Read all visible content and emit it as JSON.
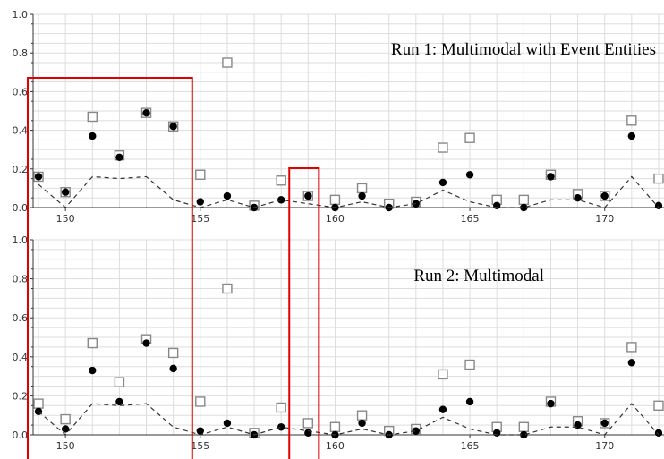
{
  "chart_data": [
    {
      "type": "scatter",
      "title": "Run 1: Multimodal with Event Entities",
      "xlabel": "",
      "ylabel": "",
      "xlim": [
        148.8,
        172.2
      ],
      "ylim": [
        0.0,
        1.0
      ],
      "xticks": [
        "150",
        "155",
        "160",
        "165",
        "170"
      ],
      "yticks": [
        "0.0",
        "0.2",
        "0.4",
        "0.6",
        "0.8",
        "1.0"
      ],
      "grid": true,
      "x": [
        149,
        150,
        151,
        152,
        153,
        154,
        155,
        156,
        157,
        158,
        159,
        160,
        161,
        162,
        163,
        164,
        165,
        166,
        167,
        168,
        169,
        170,
        171,
        172
      ],
      "series": [
        {
          "marker": "open-square",
          "values": [
            0.16,
            0.08,
            0.47,
            0.27,
            0.49,
            0.42,
            0.17,
            0.75,
            0.01,
            0.14,
            0.06,
            0.04,
            0.1,
            0.02,
            0.03,
            0.31,
            0.36,
            0.04,
            0.04,
            0.17,
            0.07,
            0.06,
            0.45,
            0.15
          ]
        },
        {
          "marker": "filled-circle",
          "values": [
            0.16,
            0.08,
            0.37,
            0.26,
            0.49,
            0.42,
            0.03,
            0.06,
            0.0,
            0.04,
            0.06,
            0.0,
            0.06,
            0.0,
            0.02,
            0.13,
            0.17,
            0.01,
            0.0,
            0.16,
            0.05,
            0.06,
            0.37,
            0.01
          ]
        },
        {
          "marker": "dashed-line",
          "values": [
            0.12,
            0.0,
            0.16,
            0.15,
            0.16,
            0.04,
            0.0,
            0.04,
            0.0,
            0.04,
            0.02,
            0.0,
            0.03,
            0.0,
            0.02,
            0.09,
            0.03,
            0.0,
            0.0,
            0.04,
            0.04,
            0.0,
            0.16,
            0.0
          ]
        }
      ]
    },
    {
      "type": "scatter",
      "title": "Run 2: Multimodal",
      "xlabel": "",
      "ylabel": "",
      "xlim": [
        148.8,
        172.2
      ],
      "ylim": [
        0.0,
        1.0
      ],
      "xticks": [
        "150",
        "155",
        "160",
        "165",
        "170"
      ],
      "yticks": [
        "0.0",
        "0.2",
        "0.4",
        "0.6",
        "0.8",
        "1.0"
      ],
      "grid": true,
      "x": [
        149,
        150,
        151,
        152,
        153,
        154,
        155,
        156,
        157,
        158,
        159,
        160,
        161,
        162,
        163,
        164,
        165,
        166,
        167,
        168,
        169,
        170,
        171,
        172
      ],
      "series": [
        {
          "marker": "open-square",
          "values": [
            0.16,
            0.08,
            0.47,
            0.27,
            0.49,
            0.42,
            0.17,
            0.75,
            0.01,
            0.14,
            0.06,
            0.04,
            0.1,
            0.02,
            0.03,
            0.31,
            0.36,
            0.04,
            0.04,
            0.17,
            0.07,
            0.06,
            0.45,
            0.15
          ]
        },
        {
          "marker": "filled-circle",
          "values": [
            0.12,
            0.03,
            0.33,
            0.17,
            0.47,
            0.34,
            0.02,
            0.06,
            0.0,
            0.04,
            0.01,
            0.0,
            0.06,
            0.0,
            0.02,
            0.13,
            0.17,
            0.01,
            0.0,
            0.16,
            0.05,
            0.06,
            0.37,
            0.01
          ]
        },
        {
          "marker": "dashed-line",
          "values": [
            0.12,
            0.0,
            0.16,
            0.15,
            0.16,
            0.04,
            0.0,
            0.04,
            0.0,
            0.04,
            0.02,
            0.0,
            0.03,
            0.0,
            0.02,
            0.09,
            0.03,
            0.0,
            0.0,
            0.04,
            0.04,
            0.0,
            0.16,
            0.0
          ]
        }
      ]
    }
  ],
  "highlights": [
    {
      "x_range": [
        148.8,
        154.7
      ],
      "color": "#e00000"
    },
    {
      "x_range": [
        158.5,
        159.4
      ],
      "color": "#e00000"
    }
  ],
  "colors": {
    "marker": "#000000",
    "open_marker": "#888888",
    "grid": "#dddddd",
    "axis": "#333333",
    "highlight": "#e00000"
  }
}
